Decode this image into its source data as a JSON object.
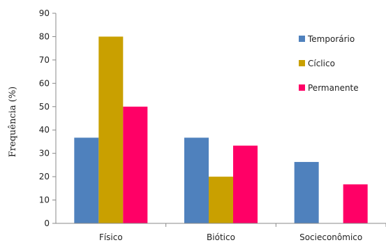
{
  "chart_data": {
    "type": "bar",
    "title": "",
    "xlabel": "",
    "ylabel": "Frequência (%)",
    "ylim": [
      0,
      90
    ],
    "yticks": [
      0,
      10,
      20,
      30,
      40,
      50,
      60,
      70,
      80,
      90
    ],
    "categories": [
      "Físico",
      "Biótico",
      "Socieconômico"
    ],
    "series": [
      {
        "name": "Temporário",
        "color": "#4f81bd",
        "values": [
          36.7,
          36.7,
          26.3
        ]
      },
      {
        "name": "Cíclico",
        "color": "#c9a000",
        "values": [
          80,
          20,
          0
        ]
      },
      {
        "name": "Permanente",
        "color": "#ff0066",
        "values": [
          50,
          33.3,
          16.7
        ]
      }
    ],
    "grid": false,
    "legend_position": "top-right"
  }
}
